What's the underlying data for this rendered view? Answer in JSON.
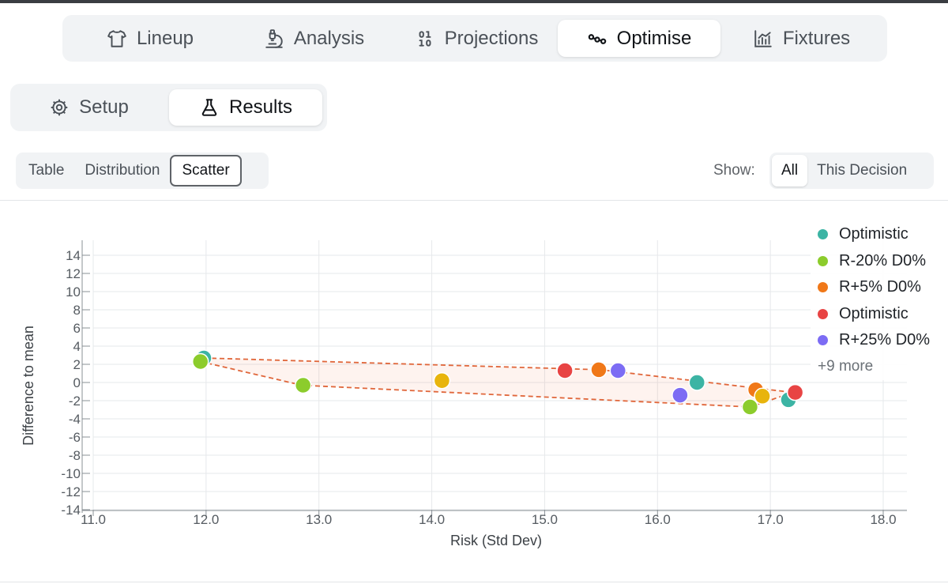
{
  "main_tabs": [
    {
      "label": "Lineup",
      "icon": "shirt-icon",
      "active": false
    },
    {
      "label": "Analysis",
      "icon": "microscope-icon",
      "active": false
    },
    {
      "label": "Projections",
      "icon": "binary-icon",
      "active": false
    },
    {
      "label": "Optimise",
      "icon": "waypoints-icon",
      "active": true
    },
    {
      "label": "Fixtures",
      "icon": "bar-chart-icon",
      "active": false
    }
  ],
  "sub_tabs": [
    {
      "label": "Setup",
      "icon": "gear-icon",
      "active": false
    },
    {
      "label": "Results",
      "icon": "flask-icon",
      "active": true
    }
  ],
  "views": [
    {
      "label": "Table",
      "active": false
    },
    {
      "label": "Distribution",
      "active": false
    },
    {
      "label": "Scatter",
      "active": true
    }
  ],
  "show": {
    "label": "Show:",
    "options": [
      {
        "label": "All",
        "active": true
      },
      {
        "label": "This Decision",
        "active": false
      }
    ]
  },
  "legend": {
    "items": [
      {
        "label": "Optimistic",
        "color": "#3cb4a4"
      },
      {
        "label": "R-20% D0%",
        "color": "#8ccc2c"
      },
      {
        "label": "R+5% D0%",
        "color": "#f07818"
      },
      {
        "label": "Optimistic",
        "color": "#e84444"
      },
      {
        "label": "R+25% D0%",
        "color": "#7c6cf4"
      }
    ],
    "more": "+9 more"
  },
  "chart_data": {
    "type": "scatter",
    "xlabel": "Risk (Std Dev)",
    "ylabel": "Difference to mean",
    "xlim": [
      11.0,
      18.0
    ],
    "ylim": [
      -14,
      14
    ],
    "x_ticks": [
      "11.0",
      "12.0",
      "13.0",
      "14.0",
      "15.0",
      "16.0",
      "17.0",
      "18.0"
    ],
    "y_ticks": [
      "14",
      "12",
      "10",
      "8",
      "6",
      "4",
      "2",
      "0",
      "-2",
      "-4",
      "-6",
      "-8",
      "-10",
      "-12",
      "-14"
    ],
    "grid": true,
    "frontier": [
      [
        11.98,
        2.7
      ],
      [
        15.5,
        1.4
      ],
      [
        17.2,
        -1.1
      ],
      [
        16.82,
        -2.7
      ],
      [
        12.85,
        -0.3
      ],
      [
        11.95,
        2.3
      ]
    ],
    "frontier_color": "#e0663a",
    "points": [
      {
        "x": 11.98,
        "y": 2.7,
        "color": "#3cb4a4"
      },
      {
        "x": 11.95,
        "y": 2.3,
        "color": "#8ccc2c"
      },
      {
        "x": 12.86,
        "y": -0.3,
        "color": "#8ccc2c"
      },
      {
        "x": 14.09,
        "y": 0.2,
        "color": "#e8b40c"
      },
      {
        "x": 15.18,
        "y": 1.3,
        "color": "#e84444"
      },
      {
        "x": 15.48,
        "y": 1.4,
        "color": "#f07818"
      },
      {
        "x": 15.65,
        "y": 1.3,
        "color": "#7c6cf4"
      },
      {
        "x": 16.2,
        "y": -1.4,
        "color": "#7c6cf4"
      },
      {
        "x": 16.35,
        "y": 0.0,
        "color": "#3cb4a4"
      },
      {
        "x": 16.82,
        "y": -2.7,
        "color": "#8ccc2c"
      },
      {
        "x": 16.87,
        "y": -0.8,
        "color": "#f07818"
      },
      {
        "x": 16.93,
        "y": -1.5,
        "color": "#e8b40c"
      },
      {
        "x": 17.16,
        "y": -1.9,
        "color": "#3cb4a4"
      },
      {
        "x": 17.22,
        "y": -1.1,
        "color": "#e84444"
      }
    ]
  }
}
